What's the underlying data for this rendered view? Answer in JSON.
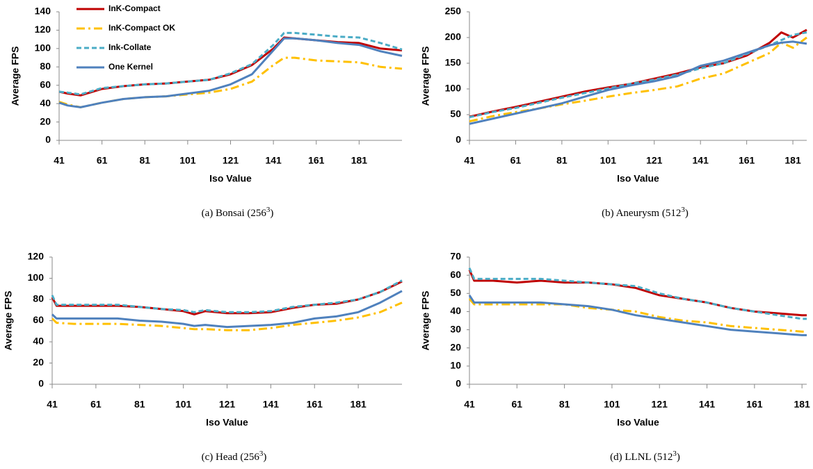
{
  "chart_data": [
    {
      "type": "line",
      "caption": [
        "(a) Bonsai (256",
        "3",
        ")"
      ],
      "x_label": "Iso Value",
      "y_label": "Average FPS",
      "legend": "upper left",
      "grid": false,
      "x": [
        41,
        45,
        51,
        61,
        71,
        81,
        91,
        101,
        111,
        121,
        131,
        141,
        146,
        151,
        161,
        171,
        181,
        191,
        201
      ],
      "series": [
        {
          "name": "InK-Compact",
          "color": "#c00000",
          "style": "solid",
          "values": [
            53,
            51,
            49,
            56,
            59,
            61,
            62,
            64,
            66,
            72,
            82,
            100,
            112,
            111,
            109,
            107,
            106,
            100,
            98
          ]
        },
        {
          "name": "InK-Compact OK",
          "color": "#ffc000",
          "style": "dash-dot",
          "values": [
            42,
            39,
            36,
            41,
            45,
            47,
            48,
            50,
            52,
            56,
            64,
            82,
            90,
            90,
            87,
            86,
            85,
            80,
            78
          ]
        },
        {
          "name": "Ink-Collate",
          "color": "#4bacc6",
          "style": "dashed",
          "values": [
            53,
            52,
            50,
            57,
            59,
            61,
            62,
            64,
            66,
            73,
            83,
            104,
            117,
            117,
            115,
            113,
            112,
            106,
            99
          ]
        },
        {
          "name": "One Kernel",
          "color": "#4f81bd",
          "style": "solid",
          "values": [
            41,
            38,
            36,
            41,
            45,
            47,
            48,
            51,
            54,
            61,
            72,
            98,
            111,
            111,
            109,
            106,
            104,
            97,
            92
          ]
        }
      ],
      "xlim": [
        41,
        201
      ],
      "ylim": [
        0,
        140
      ],
      "xticks": [
        41,
        61,
        81,
        101,
        121,
        141,
        161,
        181
      ],
      "yticks": [
        0,
        20,
        40,
        60,
        80,
        100,
        120,
        140
      ]
    },
    {
      "type": "line",
      "caption": [
        "(b) Aneurysm (512",
        "3",
        ")"
      ],
      "x_label": "Iso Value",
      "y_label": "Average FPS",
      "grid": false,
      "x": [
        41,
        51,
        61,
        71,
        81,
        91,
        101,
        111,
        121,
        131,
        141,
        151,
        161,
        171,
        176,
        181,
        187
      ],
      "series": [
        {
          "color": "#c00000",
          "style": "solid",
          "values": [
            46,
            56,
            65,
            75,
            85,
            95,
            103,
            110,
            120,
            130,
            142,
            150,
            165,
            190,
            210,
            200,
            215
          ]
        },
        {
          "color": "#ffc000",
          "style": "dash-dot",
          "values": [
            37,
            47,
            55,
            62,
            70,
            77,
            85,
            92,
            98,
            105,
            120,
            130,
            150,
            170,
            190,
            180,
            200
          ]
        },
        {
          "color": "#4bacc6",
          "style": "dashed",
          "values": [
            45,
            55,
            63,
            73,
            83,
            92,
            101,
            110,
            118,
            128,
            140,
            150,
            168,
            185,
            195,
            205,
            210
          ]
        },
        {
          "color": "#4f81bd",
          "style": "solid",
          "values": [
            32,
            42,
            52,
            62,
            72,
            85,
            98,
            107,
            115,
            125,
            145,
            155,
            170,
            185,
            190,
            192,
            188
          ]
        }
      ],
      "xlim": [
        41,
        187
      ],
      "ylim": [
        0,
        250
      ],
      "xticks": [
        41,
        61,
        81,
        101,
        121,
        141,
        161,
        181
      ],
      "yticks": [
        0,
        50,
        100,
        150,
        200,
        250
      ]
    },
    {
      "type": "line",
      "caption": [
        "(c) Head (256",
        "3",
        ")"
      ],
      "x_label": "Iso Value",
      "y_label": "Average FPS",
      "grid": false,
      "x": [
        41,
        43,
        51,
        61,
        71,
        81,
        91,
        101,
        106,
        111,
        121,
        131,
        141,
        151,
        161,
        171,
        181,
        191,
        201
      ],
      "series": [
        {
          "color": "#c00000",
          "style": "solid",
          "values": [
            82,
            74,
            74,
            74,
            74,
            73,
            71,
            69,
            66,
            69,
            67,
            67,
            68,
            72,
            75,
            76,
            80,
            87,
            97
          ]
        },
        {
          "color": "#ffc000",
          "style": "dash-dot",
          "values": [
            62,
            58,
            57,
            57,
            57,
            56,
            55,
            53,
            52,
            52,
            51,
            51,
            53,
            56,
            58,
            60,
            63,
            68,
            77
          ]
        },
        {
          "color": "#4bacc6",
          "style": "dashed",
          "values": [
            84,
            75,
            75,
            75,
            75,
            73,
            71,
            70,
            68,
            70,
            68,
            68,
            69,
            73,
            75,
            77,
            80,
            87,
            98
          ]
        },
        {
          "color": "#4f81bd",
          "style": "solid",
          "values": [
            66,
            62,
            62,
            62,
            62,
            60,
            59,
            57,
            55,
            56,
            54,
            55,
            56,
            58,
            62,
            64,
            68,
            77,
            88
          ]
        }
      ],
      "xlim": [
        41,
        201
      ],
      "ylim": [
        0,
        120
      ],
      "xticks": [
        41,
        61,
        81,
        101,
        121,
        141,
        161,
        181
      ],
      "yticks": [
        0,
        20,
        40,
        60,
        80,
        100,
        120
      ]
    },
    {
      "type": "line",
      "caption": [
        "(d) LLNL (512",
        "3",
        ")"
      ],
      "x_label": "Iso Value",
      "y_label": "Average FPS",
      "grid": false,
      "x": [
        41,
        43,
        51,
        61,
        71,
        81,
        91,
        101,
        111,
        121,
        131,
        141,
        151,
        161,
        171,
        181,
        183
      ],
      "series": [
        {
          "color": "#c00000",
          "style": "solid",
          "values": [
            63,
            57,
            57,
            56,
            57,
            56,
            56,
            55,
            53,
            49,
            47,
            45,
            42,
            40,
            39,
            38,
            38
          ]
        },
        {
          "color": "#ffc000",
          "style": "dash-dot",
          "values": [
            47,
            44,
            44,
            44,
            44,
            44,
            42,
            41,
            40,
            37,
            35,
            34,
            32,
            31,
            30,
            29,
            29
          ]
        },
        {
          "color": "#4bacc6",
          "style": "dashed",
          "values": [
            64,
            58,
            58,
            58,
            58,
            57,
            56,
            55,
            54,
            50,
            47,
            45,
            42,
            40,
            38,
            36,
            36
          ]
        },
        {
          "color": "#4f81bd",
          "style": "solid",
          "values": [
            49,
            45,
            45,
            45,
            45,
            44,
            43,
            41,
            38,
            36,
            34,
            32,
            30,
            29,
            28,
            27,
            27
          ]
        }
      ],
      "xlim": [
        41,
        183
      ],
      "ylim": [
        0,
        70
      ],
      "xticks": [
        41,
        61,
        81,
        101,
        121,
        141,
        161,
        181
      ],
      "yticks": [
        0,
        10,
        20,
        30,
        40,
        50,
        60,
        70
      ]
    }
  ]
}
